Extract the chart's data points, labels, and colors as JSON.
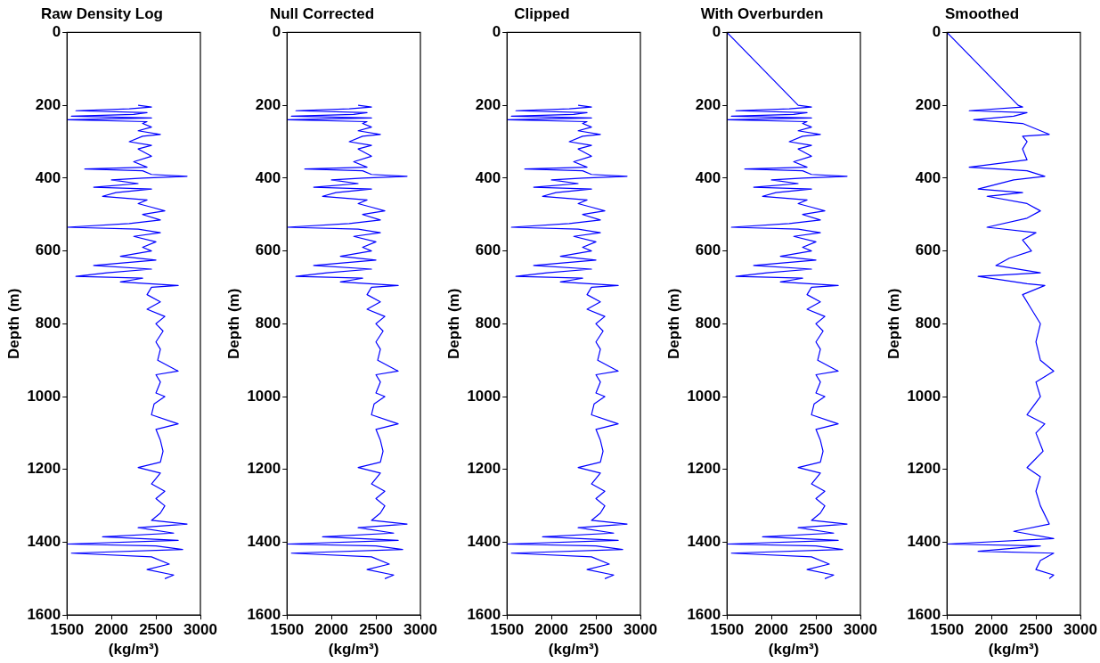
{
  "chart_data": [
    {
      "type": "line",
      "title": "Raw Density Log",
      "xlabel": "(kg/m³)",
      "ylabel": "Depth (m)",
      "xlim": [
        1500,
        3000
      ],
      "xticks": [
        1500,
        2000,
        2500,
        3000
      ],
      "ylim": [
        1600,
        0
      ],
      "yticks": [
        0,
        200,
        400,
        600,
        800,
        1000,
        1200,
        1400,
        1600
      ],
      "grid": false,
      "legend": false,
      "marker": "none",
      "line_style": "solid",
      "series": [
        {
          "color": "#0000ff",
          "x": [
            2300,
            2450,
            2200,
            1600,
            2400,
            2250,
            1550,
            2450,
            1500,
            2400,
            2350,
            2450,
            2300,
            2550,
            2350,
            2200,
            2450,
            2300,
            2450,
            2250,
            2400,
            1700,
            2350,
            2450,
            2850,
            2350,
            2000,
            2300,
            1800,
            2450,
            2050,
            1900,
            2400,
            2300,
            2450,
            2600,
            2350,
            2550,
            2200,
            1500,
            2300,
            2550,
            2250,
            2500,
            2350,
            2450,
            2100,
            2500,
            1800,
            2450,
            1950,
            1600,
            2350,
            2100,
            2750,
            2450,
            2400,
            2550,
            2400,
            2600,
            2500,
            2580,
            2500,
            2550,
            2520,
            2750,
            2500,
            2550,
            2500,
            2600,
            2480,
            2450,
            2750,
            2500,
            2550,
            2580,
            2550,
            2300,
            2550,
            2450,
            2600,
            2500,
            2600,
            2550,
            2450,
            2850,
            2300,
            2700,
            1900,
            2750,
            1500,
            2500,
            2800,
            1550,
            2450,
            2650,
            2400,
            2700,
            2600
          ],
          "values": [
            200,
            205,
            210,
            215,
            220,
            225,
            230,
            235,
            240,
            245,
            250,
            260,
            270,
            280,
            285,
            300,
            310,
            320,
            340,
            355,
            370,
            375,
            380,
            390,
            395,
            400,
            405,
            415,
            425,
            430,
            440,
            450,
            460,
            470,
            480,
            490,
            500,
            515,
            525,
            535,
            540,
            550,
            560,
            575,
            590,
            600,
            615,
            625,
            640,
            650,
            660,
            670,
            675,
            685,
            695,
            700,
            720,
            740,
            760,
            780,
            800,
            820,
            850,
            870,
            900,
            930,
            940,
            960,
            990,
            1000,
            1020,
            1050,
            1075,
            1090,
            1120,
            1150,
            1180,
            1195,
            1210,
            1240,
            1260,
            1280,
            1300,
            1320,
            1340,
            1350,
            1360,
            1375,
            1385,
            1395,
            1405,
            1410,
            1420,
            1430,
            1440,
            1460,
            1475,
            1490,
            1500
          ]
        }
      ]
    },
    {
      "type": "line",
      "title": "Null Corrected",
      "xlabel": "(kg/m³)",
      "ylabel": "Depth (m)",
      "xlim": [
        1500,
        3000
      ],
      "xticks": [
        1500,
        2000,
        2500,
        3000
      ],
      "ylim": [
        1600,
        0
      ],
      "yticks": [
        0,
        200,
        400,
        600,
        800,
        1000,
        1200,
        1400,
        1600
      ],
      "grid": false,
      "legend": false,
      "marker": "none",
      "line_style": "solid",
      "series": [
        {
          "color": "#0000ff",
          "x": [
            2300,
            2450,
            2200,
            1600,
            2400,
            2250,
            1550,
            2450,
            1500,
            2400,
            2350,
            2450,
            2300,
            2550,
            2350,
            2200,
            2450,
            2300,
            2450,
            2250,
            2400,
            1700,
            2350,
            2450,
            2850,
            2350,
            2000,
            2300,
            1800,
            2450,
            2050,
            1900,
            2400,
            2300,
            2450,
            2600,
            2350,
            2550,
            2200,
            1500,
            2300,
            2550,
            2250,
            2500,
            2350,
            2450,
            2100,
            2500,
            1800,
            2450,
            1950,
            1600,
            2350,
            2100,
            2750,
            2450,
            2400,
            2550,
            2400,
            2600,
            2500,
            2580,
            2500,
            2550,
            2520,
            2750,
            2500,
            2550,
            2500,
            2600,
            2480,
            2450,
            2750,
            2500,
            2550,
            2580,
            2550,
            2300,
            2550,
            2450,
            2600,
            2500,
            2600,
            2550,
            2450,
            2850,
            2300,
            2700,
            1900,
            2750,
            1500,
            2500,
            2800,
            1550,
            2450,
            2650,
            2400,
            2700,
            2600
          ],
          "values": [
            200,
            205,
            210,
            215,
            220,
            225,
            230,
            235,
            240,
            245,
            250,
            260,
            270,
            280,
            285,
            300,
            310,
            320,
            340,
            355,
            370,
            375,
            380,
            390,
            395,
            400,
            405,
            415,
            425,
            430,
            440,
            450,
            460,
            470,
            480,
            490,
            500,
            515,
            525,
            535,
            540,
            550,
            560,
            575,
            590,
            600,
            615,
            625,
            640,
            650,
            660,
            670,
            675,
            685,
            695,
            700,
            720,
            740,
            760,
            780,
            800,
            820,
            850,
            870,
            900,
            930,
            940,
            960,
            990,
            1000,
            1020,
            1050,
            1075,
            1090,
            1120,
            1150,
            1180,
            1195,
            1210,
            1240,
            1260,
            1280,
            1300,
            1320,
            1340,
            1350,
            1360,
            1375,
            1385,
            1395,
            1405,
            1410,
            1420,
            1430,
            1440,
            1460,
            1475,
            1490,
            1500
          ]
        }
      ]
    },
    {
      "type": "line",
      "title": "Clipped",
      "xlabel": "(kg/m³)",
      "ylabel": "Depth (m)",
      "xlim": [
        1500,
        3000
      ],
      "xticks": [
        1500,
        2000,
        2500,
        3000
      ],
      "ylim": [
        1600,
        0
      ],
      "yticks": [
        0,
        200,
        400,
        600,
        800,
        1000,
        1200,
        1400,
        1600
      ],
      "grid": false,
      "legend": false,
      "marker": "none",
      "line_style": "solid",
      "series": [
        {
          "color": "#0000ff",
          "x": [
            2300,
            2450,
            2200,
            1600,
            2400,
            2250,
            1550,
            2450,
            1500,
            2400,
            2350,
            2450,
            2300,
            2550,
            2350,
            2200,
            2450,
            2300,
            2450,
            2250,
            2400,
            1700,
            2350,
            2450,
            2850,
            2350,
            2000,
            2300,
            1800,
            2450,
            2050,
            1900,
            2400,
            2300,
            2450,
            2600,
            2350,
            2550,
            2200,
            1550,
            2300,
            2550,
            2250,
            2500,
            2350,
            2450,
            2100,
            2500,
            1800,
            2450,
            1950,
            1600,
            2350,
            2100,
            2750,
            2450,
            2400,
            2550,
            2400,
            2600,
            2500,
            2580,
            2500,
            2550,
            2520,
            2750,
            2500,
            2550,
            2500,
            2600,
            2480,
            2450,
            2750,
            2500,
            2550,
            2580,
            2550,
            2300,
            2550,
            2450,
            2600,
            2500,
            2600,
            2550,
            2450,
            2850,
            2300,
            2700,
            1900,
            2750,
            1500,
            2500,
            2800,
            1550,
            2450,
            2650,
            2400,
            2700,
            2600
          ],
          "values": [
            200,
            205,
            210,
            215,
            220,
            225,
            230,
            235,
            240,
            245,
            250,
            260,
            270,
            280,
            285,
            300,
            310,
            320,
            340,
            355,
            370,
            375,
            380,
            390,
            395,
            400,
            405,
            415,
            425,
            430,
            440,
            450,
            460,
            470,
            480,
            490,
            500,
            515,
            525,
            535,
            540,
            550,
            560,
            575,
            590,
            600,
            615,
            625,
            640,
            650,
            660,
            670,
            675,
            685,
            695,
            700,
            720,
            740,
            760,
            780,
            800,
            820,
            850,
            870,
            900,
            930,
            940,
            960,
            990,
            1000,
            1020,
            1050,
            1075,
            1090,
            1120,
            1150,
            1180,
            1195,
            1210,
            1240,
            1260,
            1280,
            1300,
            1320,
            1340,
            1350,
            1360,
            1375,
            1385,
            1395,
            1405,
            1410,
            1420,
            1430,
            1440,
            1460,
            1475,
            1490,
            1500
          ]
        }
      ]
    },
    {
      "type": "line",
      "title": "With Overburden",
      "xlabel": "(kg/m³)",
      "ylabel": "Depth (m)",
      "xlim": [
        1500,
        3000
      ],
      "xticks": [
        1500,
        2000,
        2500,
        3000
      ],
      "ylim": [
        1600,
        0
      ],
      "yticks": [
        0,
        200,
        400,
        600,
        800,
        1000,
        1200,
        1400,
        1600
      ],
      "grid": false,
      "legend": false,
      "marker": "none",
      "line_style": "solid",
      "series": [
        {
          "color": "#0000ff",
          "x": [
            1500,
            2300,
            2450,
            2200,
            1600,
            2400,
            2250,
            1550,
            2450,
            1500,
            2400,
            2350,
            2450,
            2300,
            2550,
            2350,
            2200,
            2450,
            2300,
            2450,
            2250,
            2400,
            1700,
            2350,
            2450,
            2850,
            2350,
            2000,
            2300,
            1800,
            2450,
            2050,
            1900,
            2400,
            2300,
            2450,
            2600,
            2350,
            2550,
            2200,
            1550,
            2300,
            2550,
            2250,
            2500,
            2350,
            2450,
            2100,
            2500,
            1800,
            2450,
            1950,
            1600,
            2350,
            2100,
            2750,
            2450,
            2400,
            2550,
            2400,
            2600,
            2500,
            2580,
            2500,
            2550,
            2520,
            2750,
            2500,
            2550,
            2500,
            2600,
            2480,
            2450,
            2750,
            2500,
            2550,
            2580,
            2550,
            2300,
            2550,
            2450,
            2600,
            2500,
            2600,
            2550,
            2450,
            2850,
            2300,
            2700,
            1900,
            2750,
            1500,
            2500,
            2800,
            1550,
            2450,
            2650,
            2400,
            2700,
            2600
          ],
          "values": [
            0,
            200,
            205,
            210,
            215,
            220,
            225,
            230,
            235,
            240,
            245,
            250,
            260,
            270,
            280,
            285,
            300,
            310,
            320,
            340,
            355,
            370,
            375,
            380,
            390,
            395,
            400,
            405,
            415,
            425,
            430,
            440,
            450,
            460,
            470,
            480,
            490,
            500,
            515,
            525,
            535,
            540,
            550,
            560,
            575,
            590,
            600,
            615,
            625,
            640,
            650,
            660,
            670,
            675,
            685,
            695,
            700,
            720,
            740,
            760,
            780,
            800,
            820,
            850,
            870,
            900,
            930,
            940,
            960,
            990,
            1000,
            1020,
            1050,
            1075,
            1090,
            1120,
            1150,
            1180,
            1195,
            1210,
            1240,
            1260,
            1280,
            1300,
            1320,
            1340,
            1350,
            1360,
            1375,
            1385,
            1395,
            1405,
            1410,
            1420,
            1430,
            1440,
            1460,
            1475,
            1490,
            1500
          ]
        }
      ]
    },
    {
      "type": "line",
      "title": "Smoothed",
      "xlabel": "(kg/m³)",
      "ylabel": "Depth (m)",
      "xlim": [
        1500,
        3000
      ],
      "xticks": [
        1500,
        2000,
        2500,
        3000
      ],
      "ylim": [
        1600,
        0
      ],
      "yticks": [
        0,
        200,
        400,
        600,
        800,
        1000,
        1200,
        1400,
        1600
      ],
      "grid": false,
      "legend": false,
      "marker": "none",
      "line_style": "solid",
      "series": [
        {
          "color": "#0000ff",
          "x": [
            1500,
            2300,
            2350,
            1750,
            2400,
            2250,
            1800,
            2350,
            2650,
            2350,
            2400,
            2350,
            2400,
            1750,
            2400,
            2600,
            2250,
            1850,
            2350,
            1950,
            2400,
            2550,
            2400,
            1950,
            2500,
            2350,
            2450,
            2200,
            2050,
            2550,
            1850,
            2400,
            2600,
            2350,
            2450,
            2550,
            2500,
            2550,
            2700,
            2500,
            2550,
            2400,
            2600,
            2500,
            2580,
            2400,
            2550,
            2500,
            2550,
            2650,
            2250,
            2700,
            1500,
            2550,
            1850,
            2700,
            2550,
            2500,
            2700,
            2650
          ],
          "values": [
            0,
            200,
            205,
            215,
            220,
            230,
            240,
            250,
            280,
            285,
            300,
            320,
            350,
            370,
            380,
            395,
            405,
            430,
            440,
            450,
            470,
            490,
            510,
            535,
            550,
            570,
            600,
            620,
            640,
            660,
            670,
            690,
            695,
            720,
            760,
            800,
            850,
            900,
            930,
            960,
            1000,
            1050,
            1075,
            1100,
            1150,
            1195,
            1220,
            1260,
            1300,
            1350,
            1370,
            1390,
            1405,
            1410,
            1425,
            1430,
            1450,
            1475,
            1490,
            1500
          ]
        }
      ]
    }
  ]
}
